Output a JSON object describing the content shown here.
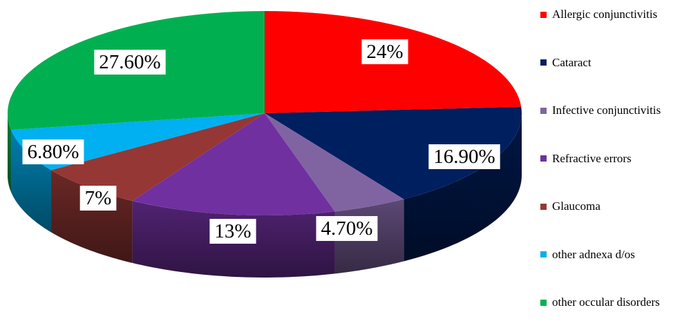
{
  "chart_data": {
    "type": "pie",
    "title": "",
    "legend_position": "right",
    "slices": [
      {
        "name": "Allergic conjunctivitis",
        "value": 24,
        "label": "24%",
        "color": "#ff0000"
      },
      {
        "name": "Cataract",
        "value": 16.9,
        "label": "16.90%",
        "color": "#001f5f"
      },
      {
        "name": "Infective conjunctivitis",
        "value": 4.7,
        "label": "4.70%",
        "color": "#8064a2"
      },
      {
        "name": "Refractive errors",
        "value": 13,
        "label": "13%",
        "color": "#7030a0"
      },
      {
        "name": "Glaucoma",
        "value": 7,
        "label": "7%",
        "color": "#953735"
      },
      {
        "name": "other adnexa d/os",
        "value": 6.8,
        "label": "6.80%",
        "color": "#00b0f0"
      },
      {
        "name": "other occular disorders",
        "value": 27.6,
        "label": "27.60%",
        "color": "#00b050"
      }
    ]
  }
}
